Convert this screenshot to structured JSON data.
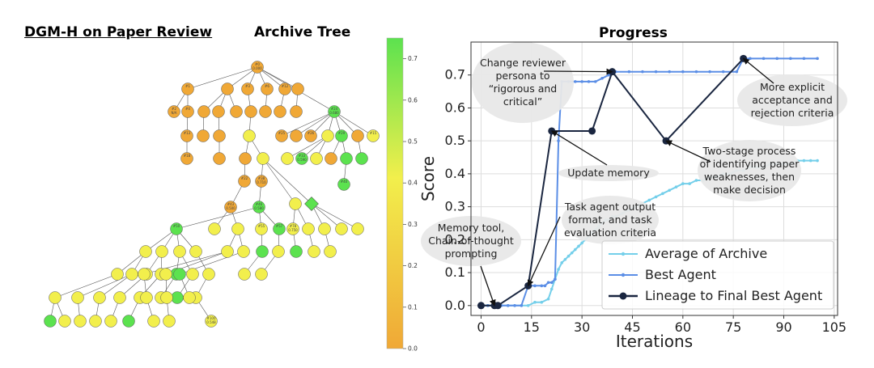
{
  "headings": {
    "left": "DGM-H on Paper Review",
    "tree": "Archive Tree",
    "progress": "Progress"
  },
  "colorbar": {
    "ticks": [
      "0.0",
      "0.1",
      "0.2",
      "0.3",
      "0.4",
      "0.5",
      "0.6",
      "0.7"
    ],
    "colors": {
      "low": "#f0a836",
      "mid": "#f2ef4c",
      "high": "#5ce24f"
    }
  },
  "tree": {
    "node_labels": [
      "#0",
      "0.000",
      "#1",
      "#3",
      "#6",
      "#12",
      "#2",
      "N/A",
      "#4",
      "#24",
      "0.680",
      "#13",
      "#25",
      "#26",
      "#29",
      "#15",
      "#18",
      "#33",
      "0.590",
      "#22",
      "#38",
      "0.710",
      "#40",
      "#43",
      "0.500",
      "#46",
      "0.580",
      "#50",
      "#55",
      "#57",
      "#78",
      "0.750",
      "#100",
      "0.548"
    ]
  },
  "chart_data": {
    "type": "line",
    "title": "Progress",
    "xlabel": "Iterations",
    "ylabel": "Score",
    "xlim": [
      -3,
      106
    ],
    "ylim": [
      -0.03,
      0.8
    ],
    "xticks": [
      0,
      15,
      30,
      45,
      60,
      75,
      90,
      105
    ],
    "yticks": [
      0.0,
      0.1,
      0.2,
      0.3,
      0.4,
      0.5,
      0.6,
      0.7
    ],
    "grid": true,
    "legend_position": "bottom-right",
    "series": [
      {
        "name": "Average of Archive",
        "color": "#74cfea",
        "x": [
          0,
          2,
          4,
          6,
          8,
          10,
          12,
          14,
          16,
          18,
          20,
          21,
          22,
          23,
          24,
          25,
          26,
          27,
          28,
          29,
          30,
          31,
          32,
          33,
          34,
          35,
          36,
          37,
          38,
          39,
          40,
          42,
          44,
          46,
          48,
          50,
          52,
          54,
          56,
          58,
          60,
          62,
          64,
          66,
          68,
          70,
          72,
          74,
          76,
          78,
          80,
          82,
          84,
          86,
          88,
          90,
          92,
          94,
          96,
          98,
          100
        ],
        "y": [
          0,
          0,
          0,
          0,
          0,
          0,
          0,
          0,
          0.01,
          0.01,
          0.02,
          0.05,
          0.08,
          0.11,
          0.13,
          0.14,
          0.15,
          0.16,
          0.17,
          0.18,
          0.19,
          0.2,
          0.21,
          0.22,
          0.23,
          0.24,
          0.25,
          0.26,
          0.26,
          0.27,
          0.27,
          0.28,
          0.29,
          0.3,
          0.31,
          0.32,
          0.33,
          0.34,
          0.35,
          0.36,
          0.37,
          0.37,
          0.38,
          0.38,
          0.39,
          0.39,
          0.4,
          0.4,
          0.41,
          0.41,
          0.42,
          0.42,
          0.42,
          0.43,
          0.43,
          0.43,
          0.43,
          0.44,
          0.44,
          0.44,
          0.44
        ]
      },
      {
        "name": "Best Agent",
        "color": "#5b8ee6",
        "x": [
          0,
          2,
          4,
          6,
          8,
          10,
          12,
          14,
          16,
          18,
          19,
          20,
          21,
          22,
          23,
          24,
          26,
          28,
          30,
          32,
          34,
          36,
          38,
          39,
          40,
          44,
          48,
          52,
          56,
          60,
          64,
          68,
          72,
          76,
          78,
          80,
          84,
          88,
          92,
          96,
          100
        ],
        "y": [
          0,
          0,
          0,
          0,
          0,
          0,
          0,
          0.06,
          0.06,
          0.06,
          0.06,
          0.07,
          0.07,
          0.08,
          0.5,
          0.68,
          0.68,
          0.68,
          0.68,
          0.68,
          0.68,
          0.69,
          0.7,
          0.71,
          0.71,
          0.71,
          0.71,
          0.71,
          0.71,
          0.71,
          0.71,
          0.71,
          0.71,
          0.71,
          0.75,
          0.75,
          0.75,
          0.75,
          0.75,
          0.75,
          0.75
        ]
      },
      {
        "name": "Lineage to Final Best Agent",
        "color": "#1a2640",
        "x": [
          0,
          4,
          5,
          14,
          21,
          33,
          39,
          55,
          78
        ],
        "y": [
          0,
          0,
          0,
          0.06,
          0.53,
          0.53,
          0.71,
          0.5,
          0.75
        ]
      }
    ],
    "annotations": [
      {
        "lines": [
          "Change reviewer",
          "persona to",
          "“rigorous and",
          "critical”"
        ]
      },
      {
        "lines": [
          "More explicit",
          "acceptance and",
          "rejection criteria"
        ]
      },
      {
        "lines": [
          "Update memory"
        ]
      },
      {
        "lines": [
          "Two-stage process",
          "of identifying paper",
          "weaknesses, then",
          "make decision"
        ]
      },
      {
        "lines": [
          "Task agent output",
          "format, and task",
          "evaluation criteria"
        ]
      },
      {
        "lines": [
          "Memory tool,",
          "Chain-of-thought",
          "prompting"
        ]
      }
    ]
  }
}
